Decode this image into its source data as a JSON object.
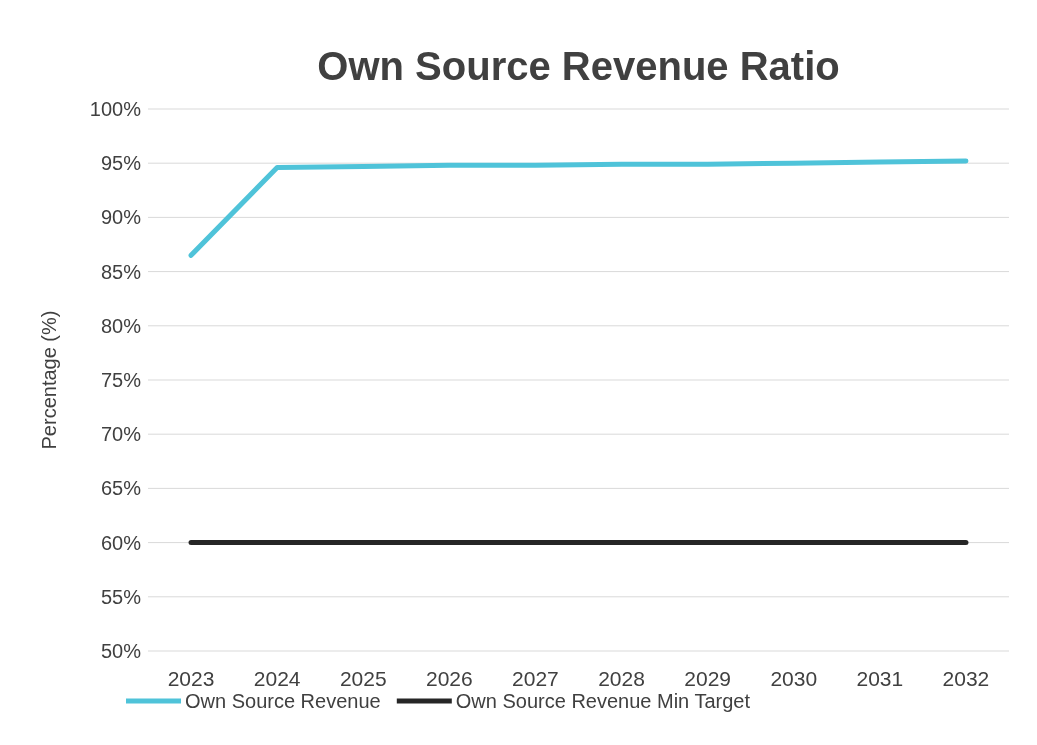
{
  "chart_data": {
    "type": "line",
    "title": "Own Source Revenue Ratio",
    "ylabel": "Percentage (%)",
    "categories": [
      "2023",
      "2024",
      "2025",
      "2026",
      "2027",
      "2028",
      "2029",
      "2030",
      "2031",
      "2032"
    ],
    "series": [
      {
        "name": "Own Source Revenue",
        "color": "#4fc3d9",
        "values": [
          86.5,
          94.6,
          94.7,
          94.8,
          94.8,
          94.9,
          94.9,
          95.0,
          95.1,
          95.2
        ]
      },
      {
        "name": "Own Source Revenue Min Target",
        "color": "#262626",
        "values": [
          60,
          60,
          60,
          60,
          60,
          60,
          60,
          60,
          60,
          60
        ]
      }
    ],
    "ylim": [
      50,
      100
    ],
    "yticks": [
      {
        "value": 50,
        "label": "50%"
      },
      {
        "value": 55,
        "label": "55%"
      },
      {
        "value": 60,
        "label": "60%"
      },
      {
        "value": 65,
        "label": "65%"
      },
      {
        "value": 70,
        "label": "70%"
      },
      {
        "value": 75,
        "label": "75%"
      },
      {
        "value": 80,
        "label": "80%"
      },
      {
        "value": 85,
        "label": "85%"
      },
      {
        "value": 90,
        "label": "90%"
      },
      {
        "value": 95,
        "label": "95%"
      },
      {
        "value": 100,
        "label": "100%"
      }
    ],
    "grid": "y",
    "legend": "bottom",
    "marker": "none",
    "line_style": "solid"
  }
}
